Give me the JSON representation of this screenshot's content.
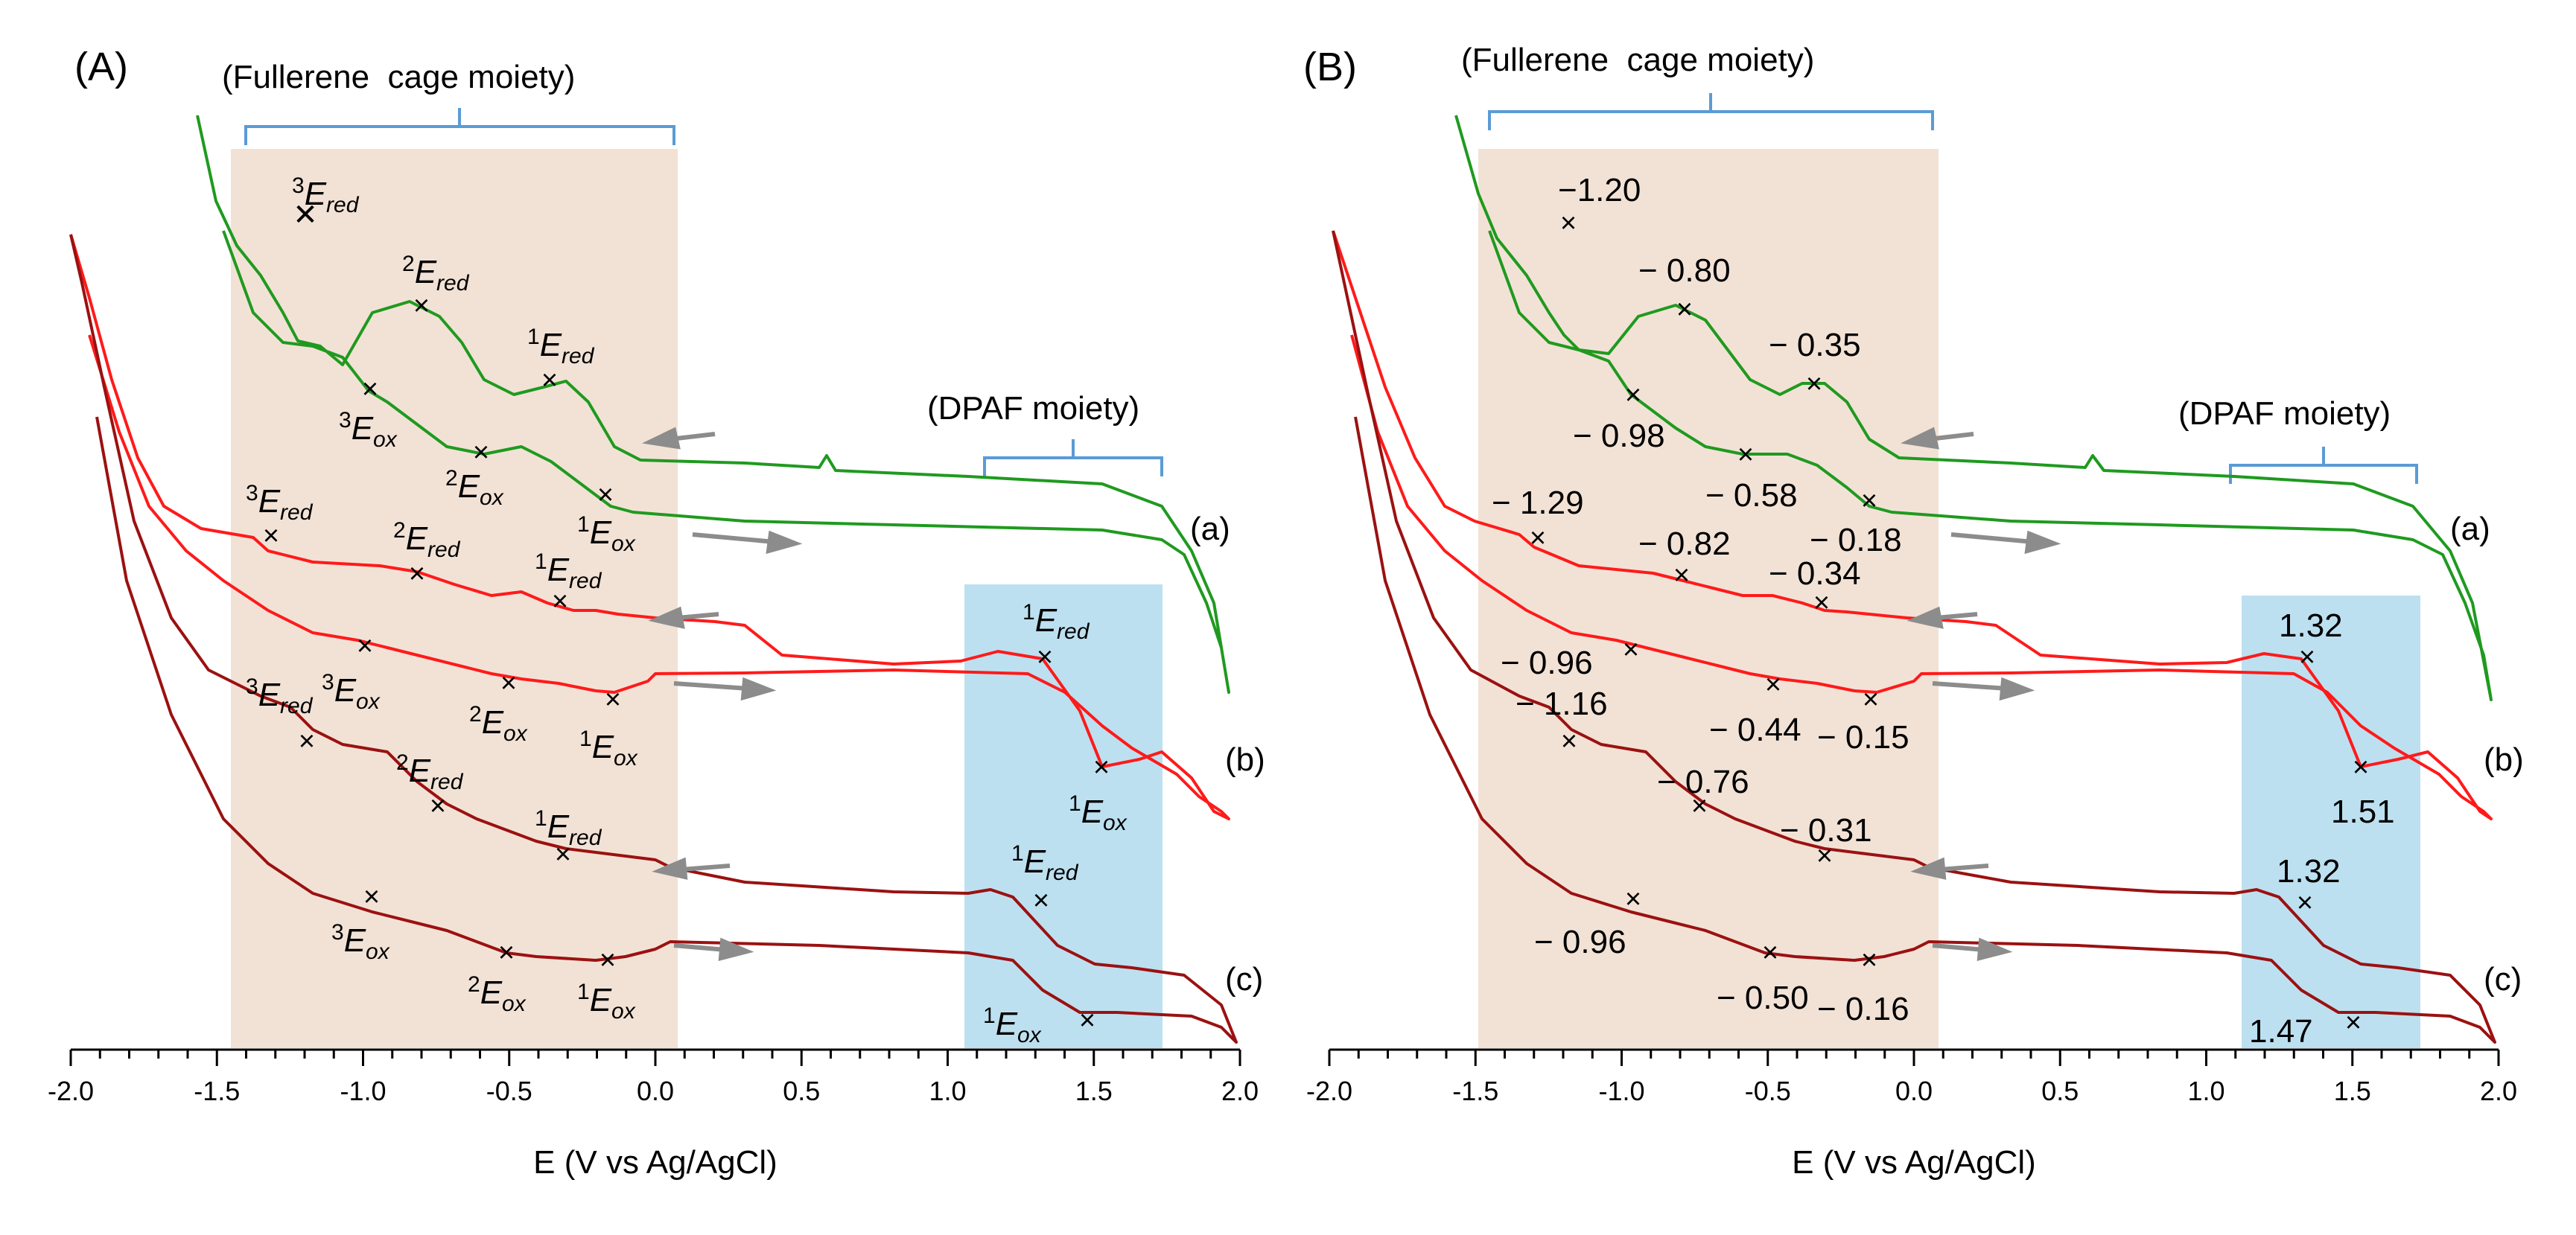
{
  "chart_data": [
    {
      "type": "line",
      "panel_label": "(A)",
      "xlabel": "E (V vs Ag/AgCl)",
      "ylabel": "",
      "xlim": [
        -2.0,
        2.0
      ],
      "x_ticks": [
        "-2.0",
        "-1.5",
        "-1.0",
        "-0.5",
        "0.0",
        "0.5",
        "1.0",
        "1.5",
        "2.0"
      ],
      "regions": [
        {
          "name": "fullerene",
          "label": "(Fullerene  cage moiety)",
          "x_range": [
            -1.45,
            0.08
          ],
          "color": "#f2e2d6"
        },
        {
          "name": "dpaf",
          "label": "(DPAF moiety)",
          "x_range": [
            1.05,
            1.75
          ],
          "color": "#bde0f0"
        }
      ],
      "series": [
        {
          "name": "(a)",
          "color": "#1f9a1f"
        },
        {
          "name": "(b)",
          "color": "#ff1a1a"
        },
        {
          "name": "(c)",
          "color": "#9b1111"
        }
      ],
      "peaks": [
        {
          "series": "(a)",
          "x": -1.2,
          "sup": "3",
          "main": "E",
          "sub": "red"
        },
        {
          "series": "(a)",
          "x": -0.8,
          "sup": "2",
          "main": "E",
          "sub": "red"
        },
        {
          "series": "(a)",
          "x": -0.35,
          "sup": "1",
          "main": "E",
          "sub": "red"
        },
        {
          "series": "(a)",
          "x": -0.98,
          "sup": "3",
          "main": "E",
          "sub": "ox"
        },
        {
          "series": "(a)",
          "x": -0.58,
          "sup": "2",
          "main": "E",
          "sub": "ox"
        },
        {
          "series": "(a)",
          "x": -0.18,
          "sup": "1",
          "main": "E",
          "sub": "ox"
        },
        {
          "series": "(b)",
          "x": -1.29,
          "sup": "3",
          "main": "E",
          "sub": "red"
        },
        {
          "series": "(b)",
          "x": -0.82,
          "sup": "2",
          "main": "E",
          "sub": "red"
        },
        {
          "series": "(b)",
          "x": -0.34,
          "sup": "1",
          "main": "E",
          "sub": "red"
        },
        {
          "series": "(b)",
          "x": -0.96,
          "sup": "3",
          "main": "E",
          "sub": "ox"
        },
        {
          "series": "(b)",
          "x": -0.44,
          "sup": "2",
          "main": "E",
          "sub": "ox"
        },
        {
          "series": "(b)",
          "x": -0.15,
          "sup": "1",
          "main": "E",
          "sub": "ox"
        },
        {
          "series": "(b)",
          "x": 1.32,
          "sup": "1",
          "main": "E",
          "sub": "red"
        },
        {
          "series": "(b)",
          "x": 1.51,
          "sup": "1",
          "main": "E",
          "sub": "ox"
        },
        {
          "series": "(c)",
          "x": -1.16,
          "sup": "3",
          "main": "E",
          "sub": "red"
        },
        {
          "series": "(c)",
          "x": -0.76,
          "sup": "2",
          "main": "E",
          "sub": "red"
        },
        {
          "series": "(c)",
          "x": -0.31,
          "sup": "1",
          "main": "E",
          "sub": "red"
        },
        {
          "series": "(c)",
          "x": -0.96,
          "sup": "3",
          "main": "E",
          "sub": "ox"
        },
        {
          "series": "(c)",
          "x": -0.5,
          "sup": "2",
          "main": "E",
          "sub": "ox"
        },
        {
          "series": "(c)",
          "x": -0.16,
          "sup": "1",
          "main": "E",
          "sub": "ox"
        },
        {
          "series": "(c)",
          "x": 1.32,
          "sup": "1",
          "main": "E",
          "sub": "red"
        },
        {
          "series": "(c)",
          "x": 1.47,
          "sup": "1",
          "main": "E",
          "sub": "ox"
        }
      ]
    },
    {
      "type": "line",
      "panel_label": "(B)",
      "xlabel": "E (V vs Ag/AgCl)",
      "ylabel": "",
      "xlim": [
        -2.0,
        2.0
      ],
      "x_ticks": [
        "-2.0",
        "-1.5",
        "-1.0",
        "-0.5",
        "0.0",
        "0.5",
        "1.0",
        "1.5",
        "2.0"
      ],
      "regions": [
        {
          "name": "fullerene",
          "label": "(Fullerene  cage moiety)",
          "x_range": [
            -1.5,
            0.08
          ],
          "color": "#f2e2d6"
        },
        {
          "name": "dpaf",
          "label": "(DPAF moiety)",
          "x_range": [
            1.1,
            1.72
          ],
          "color": "#bde0f0"
        }
      ],
      "series": [
        {
          "name": "(a)",
          "color": "#1f9a1f"
        },
        {
          "name": "(b)",
          "color": "#ff1a1a"
        },
        {
          "name": "(c)",
          "color": "#9b1111"
        }
      ],
      "peaks": [
        {
          "series": "(a)",
          "x": -1.2,
          "label": "−1.20"
        },
        {
          "series": "(a)",
          "x": -0.8,
          "label": "− 0.80"
        },
        {
          "series": "(a)",
          "x": -0.35,
          "label": "− 0.35"
        },
        {
          "series": "(a)",
          "x": -0.98,
          "label": "− 0.98"
        },
        {
          "series": "(a)",
          "x": -0.58,
          "label": "− 0.58"
        },
        {
          "series": "(a)",
          "x": -0.18,
          "label": "− 0.18"
        },
        {
          "series": "(b)",
          "x": -1.29,
          "label": "− 1.29"
        },
        {
          "series": "(b)",
          "x": -0.82,
          "label": "− 0.82"
        },
        {
          "series": "(b)",
          "x": -0.34,
          "label": "− 0.34"
        },
        {
          "series": "(b)",
          "x": -0.96,
          "label": "− 0.96"
        },
        {
          "series": "(b)",
          "x": -0.44,
          "label": "− 0.44"
        },
        {
          "series": "(b)",
          "x": -0.15,
          "label": "− 0.15"
        },
        {
          "series": "(b)",
          "x": 1.32,
          "label": "1.32"
        },
        {
          "series": "(b)",
          "x": 1.51,
          "label": "1.51"
        },
        {
          "series": "(c)",
          "x": -1.16,
          "label": "− 1.16"
        },
        {
          "series": "(c)",
          "x": -0.76,
          "label": "− 0.76"
        },
        {
          "series": "(c)",
          "x": -0.31,
          "label": "− 0.31"
        },
        {
          "series": "(c)",
          "x": -0.96,
          "label": "− 0.96"
        },
        {
          "series": "(c)",
          "x": -0.5,
          "label": "− 0.50"
        },
        {
          "series": "(c)",
          "x": -0.16,
          "label": "− 0.16"
        },
        {
          "series": "(c)",
          "x": 1.32,
          "label": "1.32"
        },
        {
          "series": "(c)",
          "x": 1.47,
          "label": "1.47"
        }
      ]
    }
  ]
}
